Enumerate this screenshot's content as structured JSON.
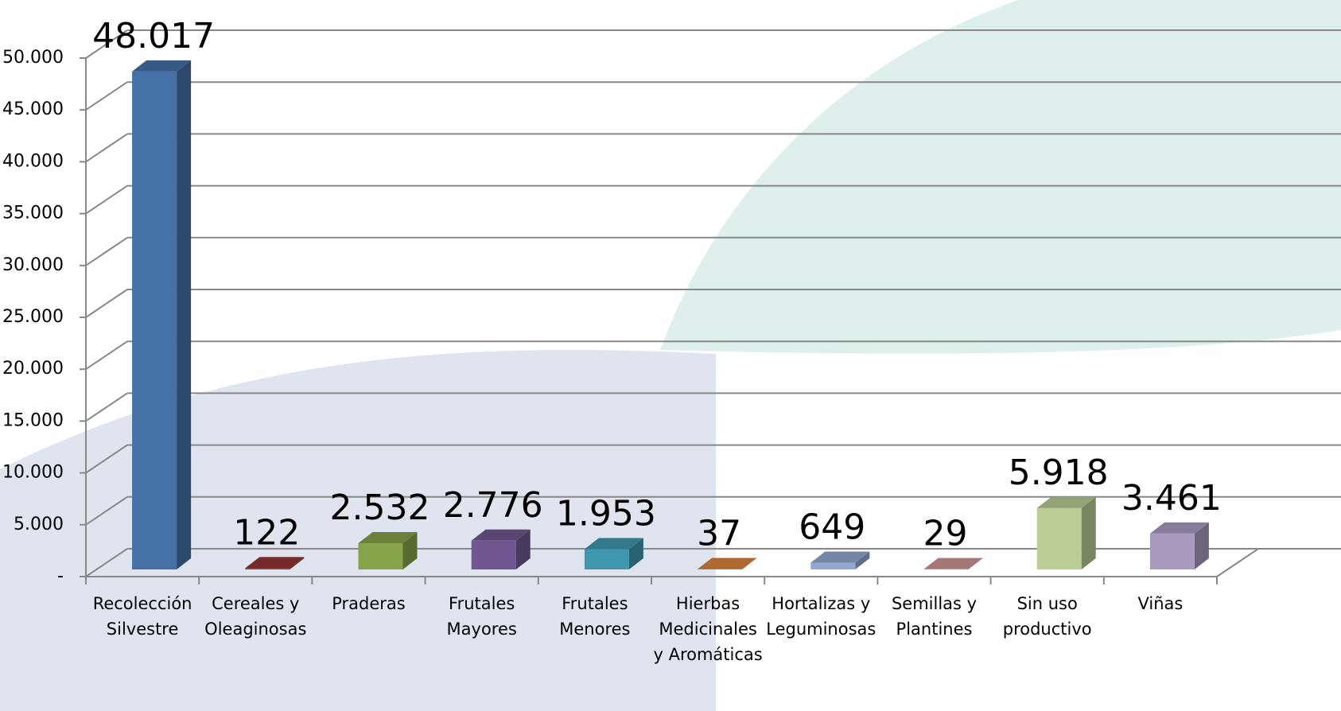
{
  "chart_data": {
    "type": "bar3d",
    "categories": [
      "Recolección Silvestre",
      "Cereales y Oleaginosas",
      "Praderas",
      "Frutales Mayores",
      "Frutales Menores",
      "Hierbas Medicinales y Aromáticas",
      "Hortalizas y Leguminosas",
      "Semillas y Plantines",
      "Sin uso productivo",
      "Viñas"
    ],
    "values": [
      48017,
      122,
      2532,
      2776,
      1953,
      37,
      649,
      29,
      5918,
      3461
    ],
    "value_labels": [
      "48.017",
      "122",
      "2.532",
      "2.776",
      "1.953",
      "37",
      "649",
      "29",
      "5.918",
      "3.461"
    ],
    "colors": [
      "#4470a6",
      "#943634",
      "#87a34a",
      "#705790",
      "#3f97ae",
      "#d9823c",
      "#92a8cf",
      "#cf9593",
      "#b9cd95",
      "#a99bbf"
    ],
    "ylim": [
      0,
      50000
    ],
    "yticks": [
      {
        "value": 0,
        "label": "-"
      },
      {
        "value": 5000,
        "label": "5.000"
      },
      {
        "value": 10000,
        "label": "10.000"
      },
      {
        "value": 15000,
        "label": "15.000"
      },
      {
        "value": 20000,
        "label": "20.000"
      },
      {
        "value": 25000,
        "label": "25.000"
      },
      {
        "value": 30000,
        "label": "30.000"
      },
      {
        "value": 35000,
        "label": "35.000"
      },
      {
        "value": 40000,
        "label": "40.000"
      },
      {
        "value": 45000,
        "label": "45.000"
      },
      {
        "value": 50000,
        "label": "50.000"
      }
    ],
    "grid": true
  }
}
